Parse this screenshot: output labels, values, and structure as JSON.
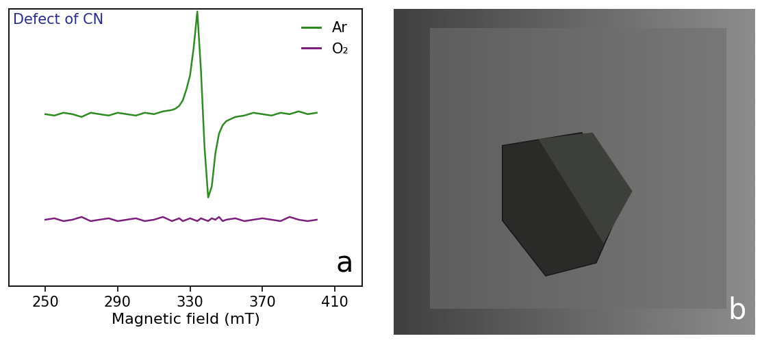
{
  "chart_data": {
    "type": "line",
    "x_label": "Magnetic field (mT)",
    "annotations": [
      "Defect of CN",
      "a"
    ],
    "x": [
      250,
      255,
      260,
      265,
      270,
      275,
      280,
      285,
      290,
      295,
      300,
      305,
      310,
      315,
      320,
      322,
      324,
      326,
      328,
      330,
      332,
      334,
      336,
      338,
      340,
      342,
      344,
      346,
      348,
      350,
      355,
      360,
      365,
      370,
      375,
      380,
      385,
      390,
      395,
      400
    ],
    "series": [
      {
        "name": "Ar",
        "color": "#2e8b22",
        "values": [
          6.2,
          6.15,
          6.25,
          6.2,
          6.1,
          6.25,
          6.2,
          6.15,
          6.25,
          6.2,
          6.15,
          6.25,
          6.2,
          6.3,
          6.35,
          6.4,
          6.5,
          6.7,
          7.1,
          7.6,
          8.6,
          9.9,
          7.8,
          5.0,
          3.2,
          3.6,
          4.8,
          5.5,
          5.8,
          5.95,
          6.1,
          6.15,
          6.25,
          6.2,
          6.15,
          6.25,
          6.2,
          6.3,
          6.2,
          6.25
        ]
      },
      {
        "name": "O₂",
        "color": "#7b1f7b",
        "values": [
          2.4,
          2.45,
          2.35,
          2.4,
          2.5,
          2.35,
          2.4,
          2.45,
          2.35,
          2.4,
          2.45,
          2.35,
          2.4,
          2.5,
          2.35,
          2.4,
          2.45,
          2.35,
          2.4,
          2.45,
          2.4,
          2.35,
          2.45,
          2.4,
          2.35,
          2.45,
          2.4,
          2.5,
          2.35,
          2.4,
          2.45,
          2.35,
          2.4,
          2.45,
          2.4,
          2.35,
          2.5,
          2.4,
          2.35,
          2.4
        ]
      }
    ],
    "xlim": [
      230,
      425
    ],
    "xticks": [
      250,
      290,
      330,
      370,
      410
    ],
    "ylim": [
      0,
      10
    ],
    "tick_labels": "x",
    "legend": "upper right"
  },
  "image": {
    "label": "b"
  }
}
